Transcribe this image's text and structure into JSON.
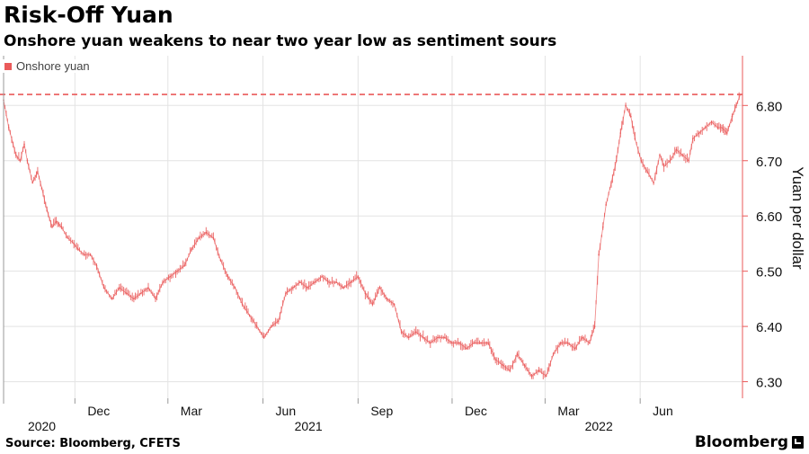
{
  "header": {
    "title": "Risk-Off Yuan",
    "subtitle": "Onshore yuan weakens to near two year low as sentiment sours"
  },
  "footer": {
    "source": "Source: Bloomberg, CFETS",
    "brand": "Bloomberg"
  },
  "colors": {
    "series": "#ea5a5a",
    "grid": "#e3e3e3",
    "axis": "#ea5a5a"
  },
  "icons": {
    "brand": "bloomberg-terminal-icon"
  },
  "chart_data": {
    "type": "line",
    "title": "Risk-Off Yuan",
    "subtitle": "Onshore yuan weakens to near two year low as sentiment sours",
    "xlabel": "",
    "ylabel": "Yuan per dollar",
    "ylim": [
      6.27,
      6.89
    ],
    "xlim": [
      "2020-09-23",
      "2022-09-08"
    ],
    "y_ticks": [
      "6.30",
      "6.40",
      "6.50",
      "6.60",
      "6.70",
      "6.80"
    ],
    "x_ticks": [
      {
        "label": "Dec",
        "date": "2020-12-01"
      },
      {
        "label": "Mar",
        "date": "2021-03-01"
      },
      {
        "label": "Jun",
        "date": "2021-06-01"
      },
      {
        "label": "Sep",
        "date": "2021-09-01"
      },
      {
        "label": "Dec",
        "date": "2021-12-01"
      },
      {
        "label": "Mar",
        "date": "2022-03-01"
      },
      {
        "label": "Jun",
        "date": "2022-06-01"
      }
    ],
    "year_labels": [
      {
        "label": "2020",
        "date": "2020-10-30"
      },
      {
        "label": "2021",
        "date": "2021-07-15"
      },
      {
        "label": "2022",
        "date": "2022-04-22"
      }
    ],
    "grid": true,
    "legend_position": "top-left",
    "reference_line": {
      "value": 6.82,
      "style": "dashed"
    },
    "series": [
      {
        "name": "Onshore yuan",
        "x": [
          "2020-09-23",
          "2020-09-28",
          "2020-10-05",
          "2020-10-09",
          "2020-10-13",
          "2020-10-16",
          "2020-10-21",
          "2020-10-26",
          "2020-10-30",
          "2020-11-04",
          "2020-11-09",
          "2020-11-13",
          "2020-11-18",
          "2020-11-24",
          "2020-11-30",
          "2020-12-04",
          "2020-12-10",
          "2020-12-16",
          "2020-12-22",
          "2020-12-29",
          "2021-01-06",
          "2021-01-13",
          "2021-01-20",
          "2021-01-27",
          "2021-02-03",
          "2021-02-10",
          "2021-02-17",
          "2021-02-24",
          "2021-03-03",
          "2021-03-10",
          "2021-03-17",
          "2021-03-24",
          "2021-03-31",
          "2021-04-07",
          "2021-04-14",
          "2021-04-21",
          "2021-04-28",
          "2021-05-05",
          "2021-05-12",
          "2021-05-19",
          "2021-05-26",
          "2021-06-02",
          "2021-06-09",
          "2021-06-16",
          "2021-06-23",
          "2021-06-30",
          "2021-07-07",
          "2021-07-14",
          "2021-07-21",
          "2021-07-28",
          "2021-08-04",
          "2021-08-11",
          "2021-08-18",
          "2021-08-25",
          "2021-09-01",
          "2021-09-08",
          "2021-09-15",
          "2021-09-22",
          "2021-09-29",
          "2021-10-06",
          "2021-10-13",
          "2021-10-20",
          "2021-10-27",
          "2021-11-03",
          "2021-11-10",
          "2021-11-17",
          "2021-11-24",
          "2021-12-01",
          "2021-12-08",
          "2021-12-15",
          "2021-12-22",
          "2021-12-29",
          "2022-01-05",
          "2022-01-12",
          "2022-01-19",
          "2022-01-26",
          "2022-02-02",
          "2022-02-09",
          "2022-02-16",
          "2022-02-23",
          "2022-03-02",
          "2022-03-09",
          "2022-03-16",
          "2022-03-23",
          "2022-03-30",
          "2022-04-06",
          "2022-04-13",
          "2022-04-18",
          "2022-04-22",
          "2022-04-26",
          "2022-04-29",
          "2022-05-04",
          "2022-05-09",
          "2022-05-13",
          "2022-05-18",
          "2022-05-23",
          "2022-05-27",
          "2022-06-02",
          "2022-06-08",
          "2022-06-14",
          "2022-06-20",
          "2022-06-24",
          "2022-06-30",
          "2022-07-06",
          "2022-07-12",
          "2022-07-18",
          "2022-07-22",
          "2022-07-28",
          "2022-08-03",
          "2022-08-09",
          "2022-08-15",
          "2022-08-19",
          "2022-08-24",
          "2022-08-29",
          "2022-09-02",
          "2022-09-06"
        ],
        "y": [
          6.81,
          6.76,
          6.71,
          6.7,
          6.73,
          6.7,
          6.66,
          6.68,
          6.65,
          6.61,
          6.58,
          6.59,
          6.58,
          6.56,
          6.55,
          6.54,
          6.53,
          6.53,
          6.51,
          6.47,
          6.45,
          6.47,
          6.46,
          6.45,
          6.46,
          6.47,
          6.45,
          6.48,
          6.49,
          6.5,
          6.51,
          6.54,
          6.56,
          6.57,
          6.56,
          6.52,
          6.49,
          6.47,
          6.44,
          6.42,
          6.4,
          6.38,
          6.4,
          6.41,
          6.46,
          6.47,
          6.48,
          6.47,
          6.48,
          6.49,
          6.48,
          6.48,
          6.47,
          6.48,
          6.49,
          6.46,
          6.44,
          6.47,
          6.45,
          6.44,
          6.39,
          6.38,
          6.39,
          6.38,
          6.37,
          6.38,
          6.38,
          6.37,
          6.37,
          6.36,
          6.37,
          6.37,
          6.37,
          6.34,
          6.33,
          6.32,
          6.35,
          6.33,
          6.31,
          6.32,
          6.31,
          6.35,
          6.37,
          6.37,
          6.36,
          6.38,
          6.37,
          6.4,
          6.53,
          6.58,
          6.62,
          6.66,
          6.7,
          6.75,
          6.8,
          6.78,
          6.74,
          6.7,
          6.68,
          6.66,
          6.71,
          6.69,
          6.7,
          6.72,
          6.71,
          6.7,
          6.74,
          6.75,
          6.76,
          6.77,
          6.76,
          6.76,
          6.75,
          6.78,
          6.8,
          6.82
        ]
      }
    ]
  }
}
